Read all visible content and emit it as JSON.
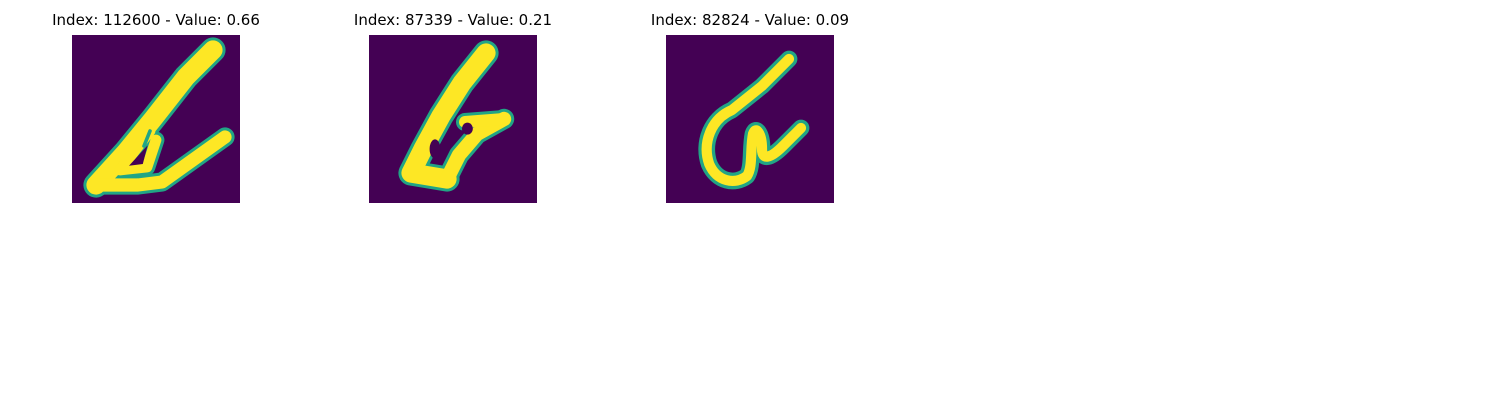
{
  "colors": {
    "background": "#440154",
    "foreground": "#fde725",
    "edge": "#21a585"
  },
  "panels": [
    {
      "title": "Index: 112600 - Value: 0.66",
      "index": 112600,
      "value": 0.66
    },
    {
      "title": "Index: 87339 - Value: 0.21",
      "index": 87339,
      "value": 0.21
    },
    {
      "title": "Index: 82824 - Value: 0.09",
      "index": 82824,
      "value": 0.09
    }
  ]
}
